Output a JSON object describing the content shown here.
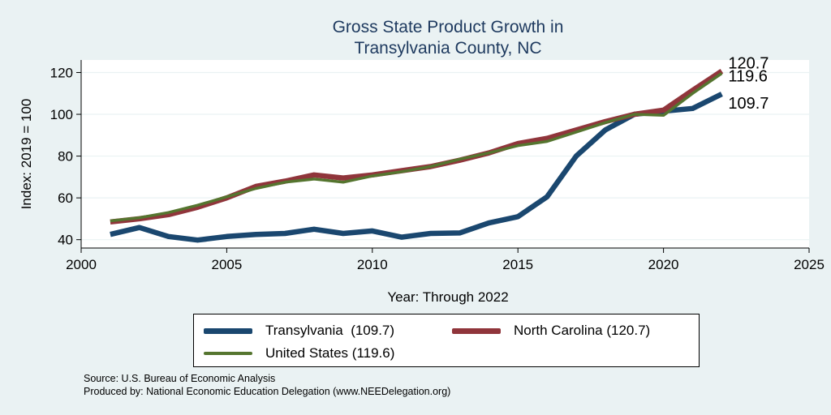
{
  "chart_data": {
    "type": "line",
    "title_lines": [
      "Gross State Product Growth in",
      "Transylvania County, NC"
    ],
    "xlabel": "Year: Through 2022",
    "ylabel": "Index: 2019 = 100",
    "xlim": [
      2000,
      2025
    ],
    "ylim": [
      36,
      126
    ],
    "xticks": [
      2000,
      2005,
      2010,
      2015,
      2020,
      2025
    ],
    "yticks": [
      40,
      60,
      80,
      100,
      120
    ],
    "x": [
      2001,
      2002,
      2003,
      2004,
      2005,
      2006,
      2007,
      2008,
      2009,
      2010,
      2011,
      2012,
      2013,
      2014,
      2015,
      2016,
      2017,
      2018,
      2019,
      2020,
      2021,
      2022
    ],
    "series": [
      {
        "name": "Transylvania",
        "legend_label": "Transylvania  (109.7)",
        "color": "#1a476f",
        "end_label": "109.7",
        "values": [
          42.5,
          45.8,
          41.5,
          39.8,
          41.5,
          42.5,
          43.0,
          45.0,
          43.0,
          44.2,
          41.2,
          43.0,
          43.2,
          48.0,
          51.0,
          60.5,
          80.0,
          92.5,
          100.0,
          101.5,
          102.8,
          109.7
        ]
      },
      {
        "name": "North Carolina",
        "legend_label": "North Carolina (120.7)",
        "color": "#90353b",
        "end_label": "120.7",
        "values": [
          48.5,
          50.0,
          52.0,
          55.5,
          60.0,
          65.5,
          68.0,
          71.0,
          69.5,
          71.0,
          73.0,
          75.0,
          78.0,
          81.5,
          86.0,
          88.5,
          92.5,
          96.5,
          100.0,
          102.0,
          111.5,
          120.7
        ]
      },
      {
        "name": "United States",
        "legend_label": "United States (119.6)",
        "color": "#55752f",
        "end_label": "119.6",
        "values": [
          49.0,
          50.5,
          53.0,
          56.5,
          60.5,
          64.5,
          67.5,
          69.0,
          67.5,
          70.5,
          72.5,
          75.0,
          78.5,
          81.5,
          85.0,
          87.0,
          91.5,
          96.0,
          100.0,
          99.5,
          110.0,
          119.6
        ]
      }
    ],
    "legend_position": "bottom",
    "grid": true
  },
  "notes": {
    "source": "Source: U.S. Bureau of Economic Analysis",
    "produced_by": "Produced by: National Economic Education Delegation (www.NEEDelegation.org)"
  }
}
